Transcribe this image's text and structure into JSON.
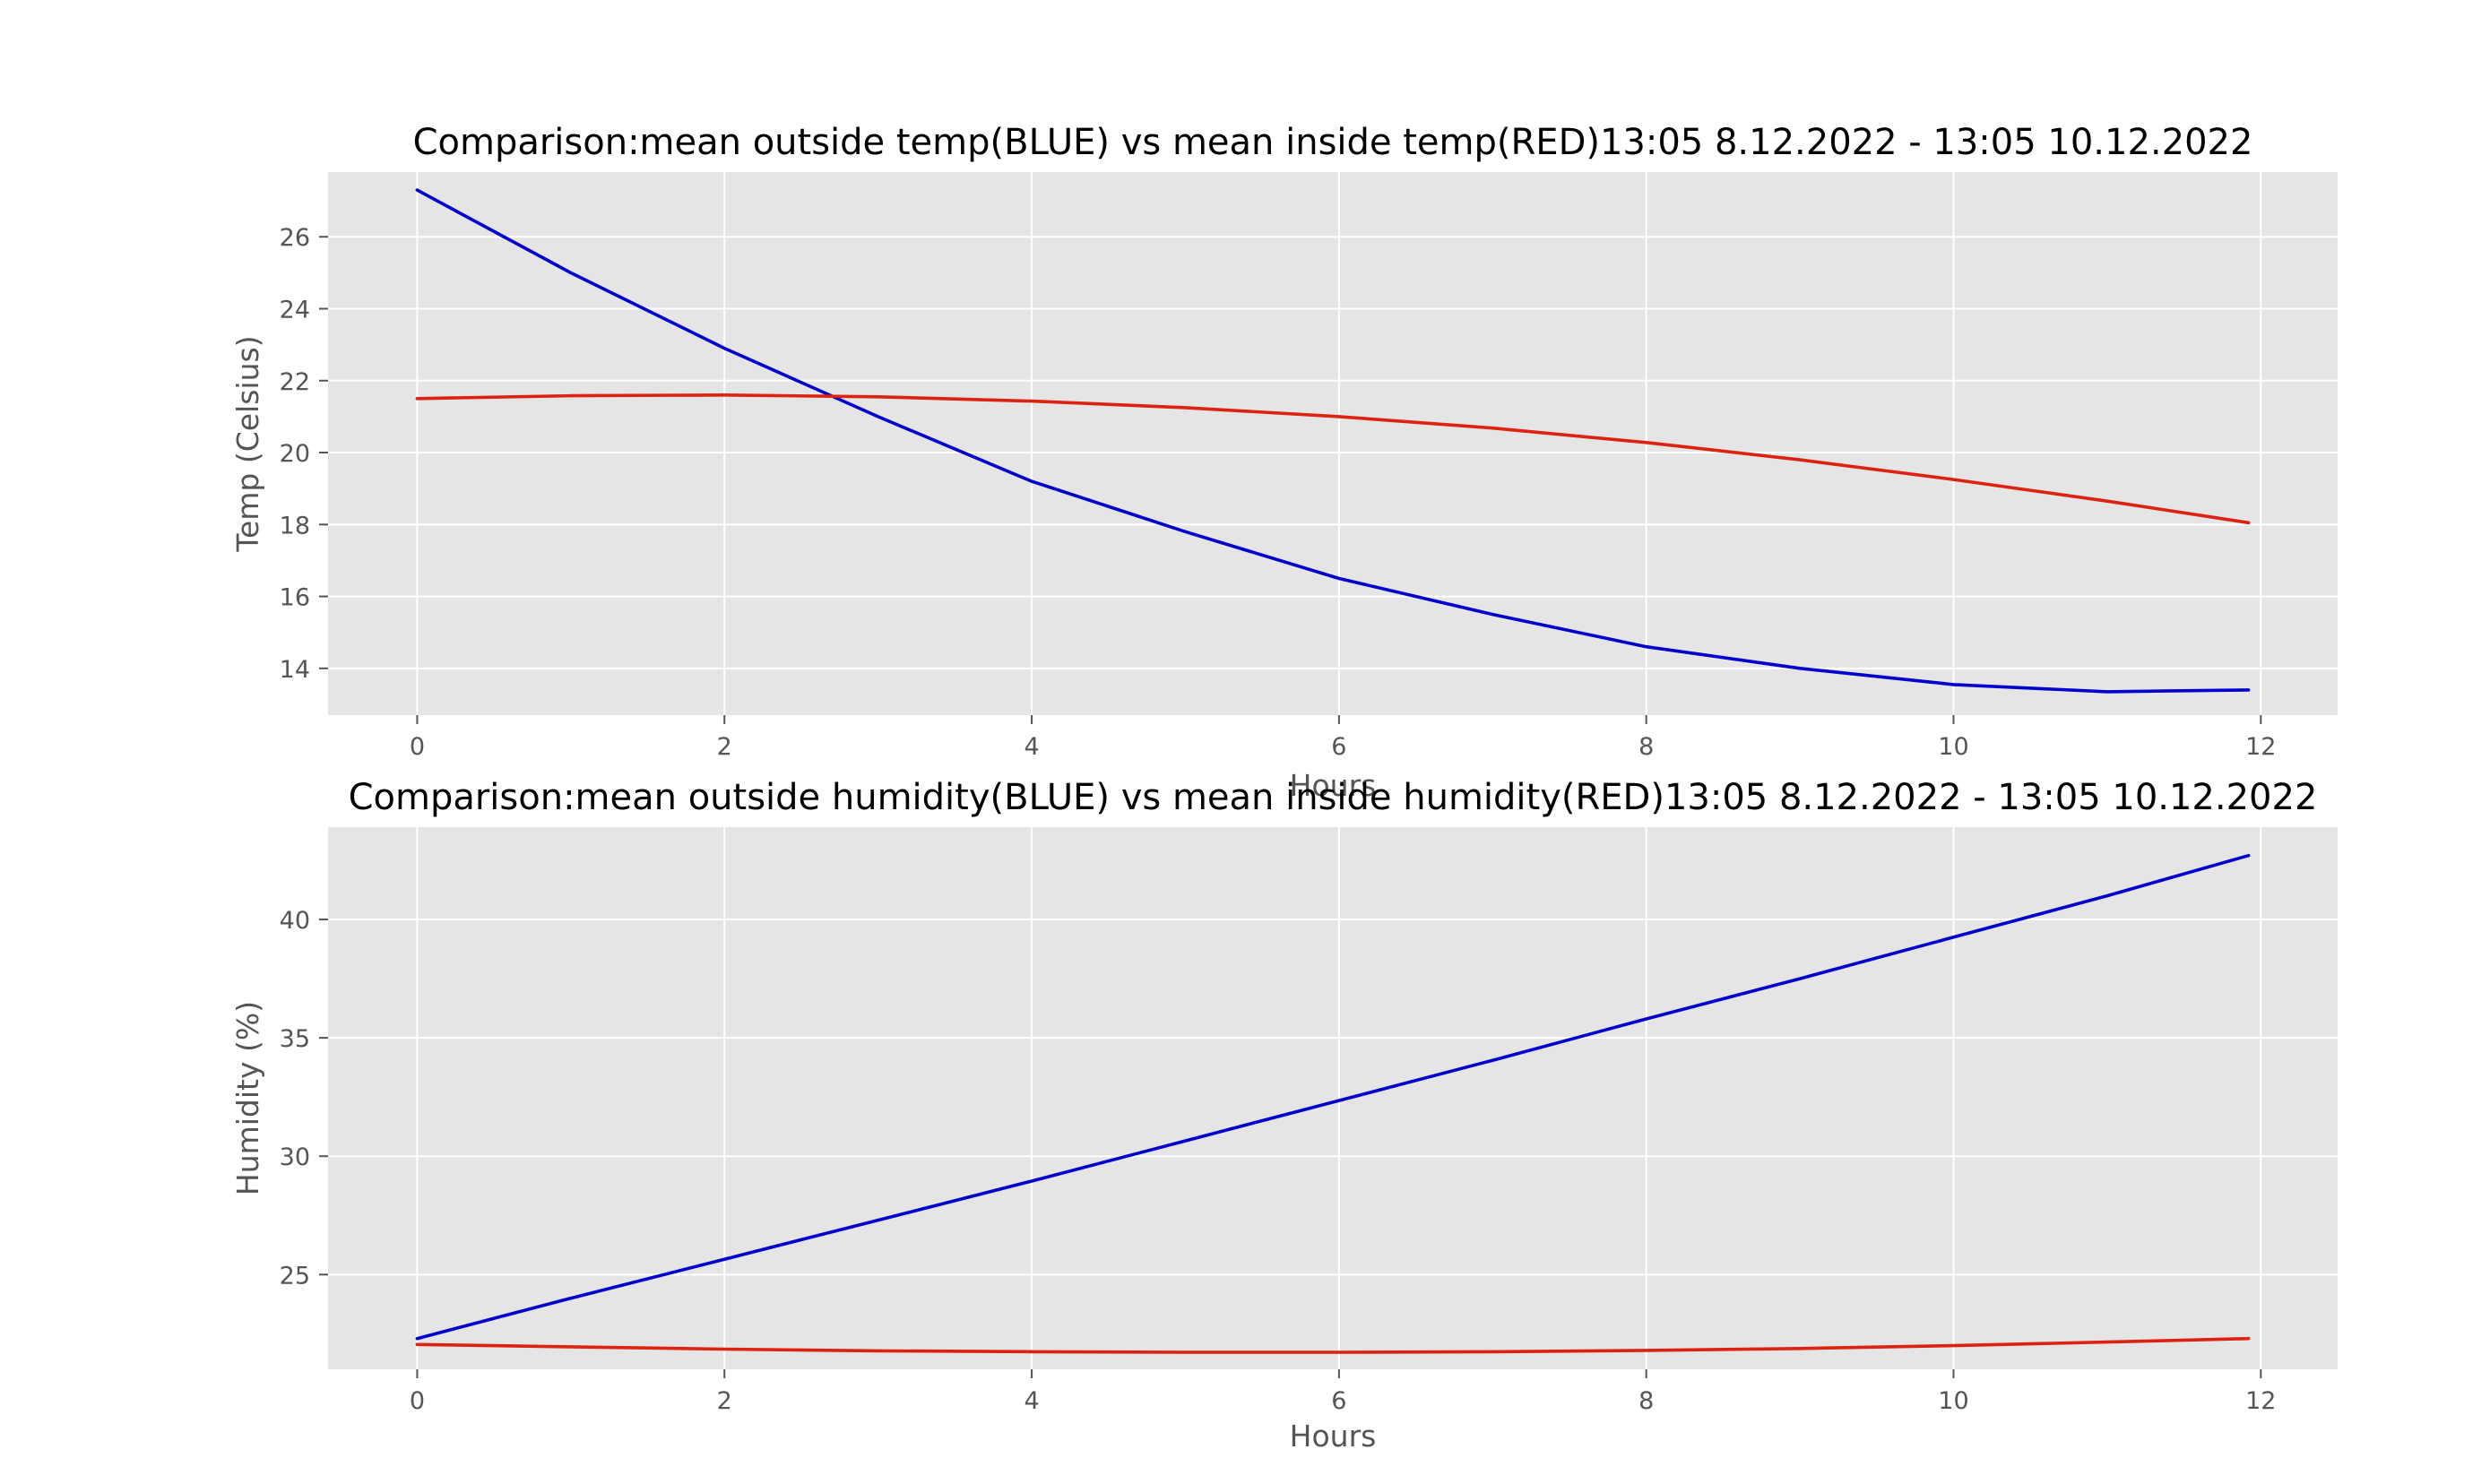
{
  "chart_data": [
    {
      "type": "line",
      "title": "Comparison:mean outside temp(BLUE) vs mean inside temp(RED)13:05 8.12.2022 - 13:05 10.12.2022",
      "xlabel": "Hours",
      "ylabel": "Temp (Celsius)",
      "xlim": [
        -0.58,
        12.5
      ],
      "ylim": [
        12.7,
        27.8
      ],
      "xticks": [
        0,
        2,
        4,
        6,
        8,
        10,
        12
      ],
      "yticks": [
        14,
        16,
        18,
        20,
        22,
        24,
        26
      ],
      "grid": true,
      "background": "#e5e5e5",
      "series": [
        {
          "name": "mean outside temp",
          "color": "#0000cc",
          "x": [
            0,
            1,
            2,
            3,
            4,
            5,
            6,
            7,
            8,
            9,
            10,
            11,
            11.92
          ],
          "values": [
            27.3,
            25.0,
            22.9,
            21.0,
            19.2,
            17.8,
            16.5,
            15.5,
            14.6,
            14.0,
            13.55,
            13.35,
            13.4
          ]
        },
        {
          "name": "mean inside temp",
          "color": "#dd2211",
          "x": [
            0,
            1,
            2,
            3,
            4,
            5,
            6,
            7,
            8,
            9,
            10,
            11,
            11.92
          ],
          "values": [
            21.5,
            21.58,
            21.6,
            21.55,
            21.43,
            21.25,
            21.0,
            20.68,
            20.28,
            19.8,
            19.25,
            18.65,
            18.05
          ]
        }
      ]
    },
    {
      "type": "line",
      "title": "Comparison:mean outside humidity(BLUE) vs mean inside humidity(RED)13:05 8.12.2022 - 13:05 10.12.2022",
      "xlabel": "Hours",
      "ylabel": "Humidity (%)",
      "xlim": [
        -0.58,
        12.5
      ],
      "ylim": [
        21.0,
        43.9
      ],
      "xticks": [
        0,
        2,
        4,
        6,
        8,
        10,
        12
      ],
      "yticks": [
        25,
        30,
        35,
        40
      ],
      "grid": true,
      "background": "#e5e5e5",
      "series": [
        {
          "name": "mean outside humidity",
          "color": "#0000cc",
          "x": [
            0,
            1,
            2,
            3,
            4,
            5,
            6,
            7,
            8,
            9,
            10,
            11,
            11.92
          ],
          "values": [
            22.3,
            24.0,
            25.65,
            27.3,
            28.95,
            30.65,
            32.35,
            34.05,
            35.8,
            37.5,
            39.25,
            41.0,
            42.7
          ]
        },
        {
          "name": "mean inside humidity",
          "color": "#dd2211",
          "x": [
            0,
            1,
            2,
            3,
            4,
            5,
            6,
            7,
            8,
            9,
            10,
            11,
            11.92
          ],
          "values": [
            22.05,
            21.95,
            21.85,
            21.78,
            21.74,
            21.72,
            21.72,
            21.74,
            21.8,
            21.88,
            22.0,
            22.15,
            22.3
          ]
        }
      ]
    }
  ]
}
